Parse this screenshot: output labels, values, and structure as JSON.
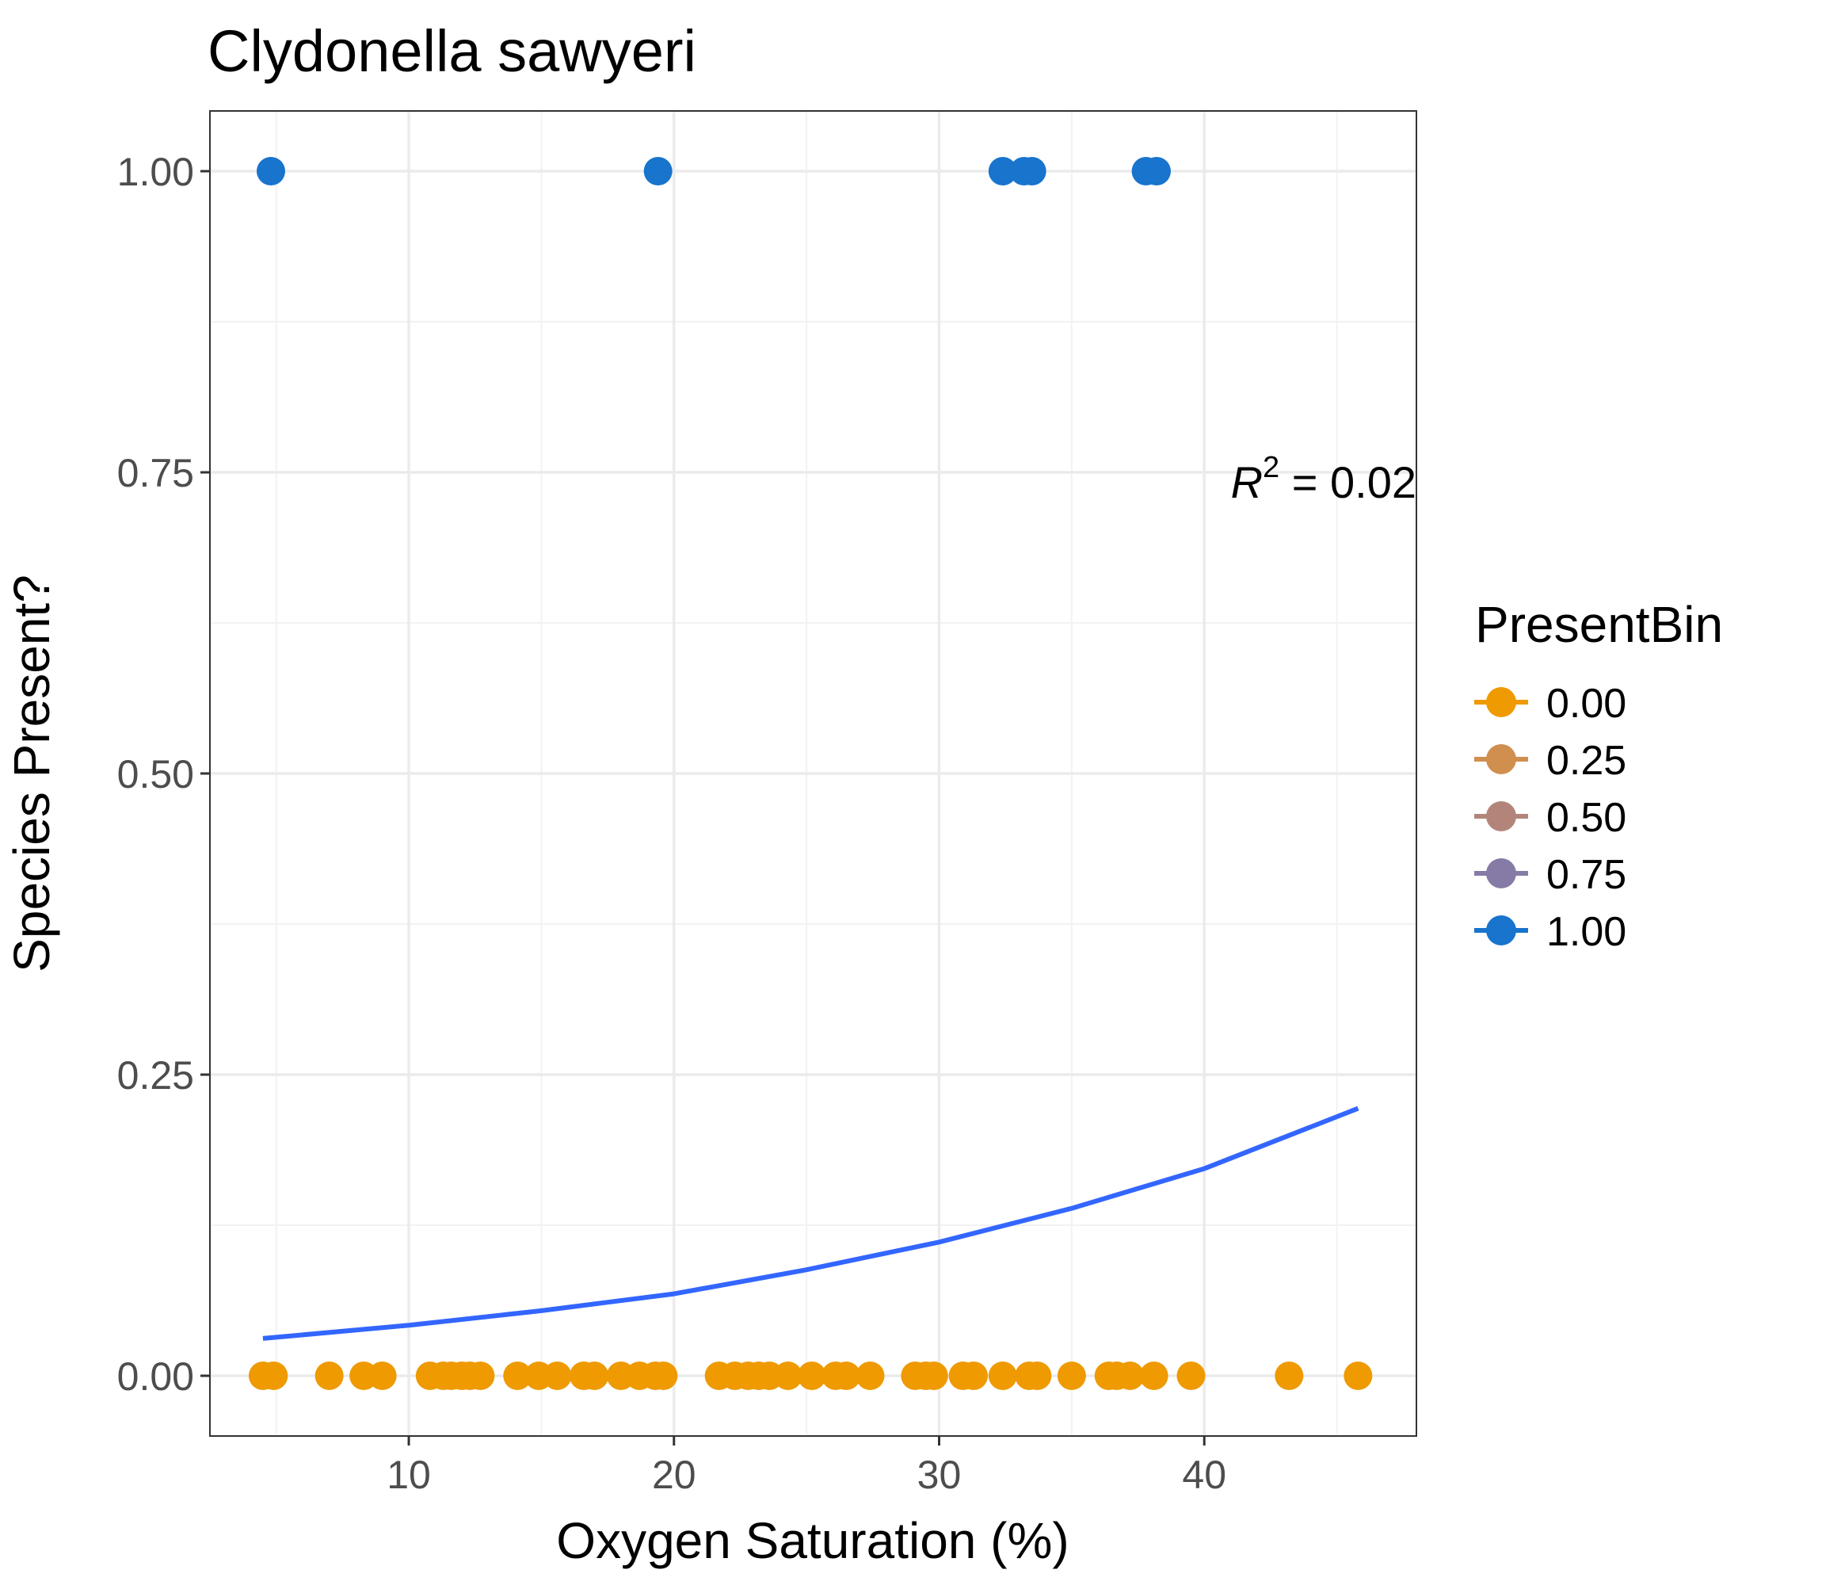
{
  "chart_data": {
    "type": "scatter",
    "title": "Clydonella sawyeri",
    "xlabel": "Oxygen Saturation (%)",
    "ylabel": "Species Present?",
    "xlim": [
      2.5,
      48.0
    ],
    "ylim": [
      -0.05,
      1.05
    ],
    "x_ticks": [
      10,
      20,
      30,
      40
    ],
    "x_tick_labels": [
      "10",
      "20",
      "30",
      "40"
    ],
    "y_ticks": [
      0,
      0.25,
      0.5,
      0.75,
      1.0
    ],
    "y_tick_labels": [
      "0.00",
      "0.25",
      "0.50",
      "0.75",
      "1.00"
    ],
    "grid": true,
    "annotation": {
      "prefix": "R",
      "superscript": "2",
      "text": " = 0.02"
    },
    "legend": {
      "title": "PresentBin",
      "placement": "right",
      "entries": [
        {
          "label": "0.00",
          "color": "#EE9A00"
        },
        {
          "label": "0.25",
          "color": "#D08E4F"
        },
        {
          "label": "0.50",
          "color": "#B3857A"
        },
        {
          "label": "0.75",
          "color": "#867BA6"
        },
        {
          "label": "1.00",
          "color": "#1874CD"
        }
      ]
    },
    "series": [
      {
        "name": "0.00",
        "color": "#EE9A00",
        "y": 0,
        "x": [
          4.5,
          4.9,
          7.0,
          8.3,
          9.0,
          10.8,
          11.3,
          11.6,
          12.0,
          12.3,
          12.7,
          14.1,
          14.9,
          15.6,
          16.6,
          17.0,
          18.0,
          18.7,
          19.3,
          19.6,
          21.7,
          22.3,
          22.8,
          23.2,
          23.6,
          24.3,
          25.2,
          26.1,
          26.5,
          27.4,
          29.1,
          29.5,
          29.8,
          30.9,
          31.3,
          32.4,
          33.4,
          33.7,
          35.0,
          36.4,
          36.7,
          37.2,
          38.1,
          39.5,
          43.2,
          45.8
        ]
      },
      {
        "name": "1.00",
        "color": "#1874CD",
        "y": 1,
        "x": [
          4.8,
          19.4,
          32.4,
          33.2,
          33.5,
          37.8,
          38.2
        ]
      }
    ],
    "fit_line": {
      "color": "#3366FF",
      "x": [
        4.5,
        10,
        15,
        20,
        25,
        30,
        35,
        40,
        45.8
      ],
      "y": [
        0.031,
        0.042,
        0.054,
        0.068,
        0.088,
        0.111,
        0.139,
        0.172,
        0.222
      ]
    }
  }
}
